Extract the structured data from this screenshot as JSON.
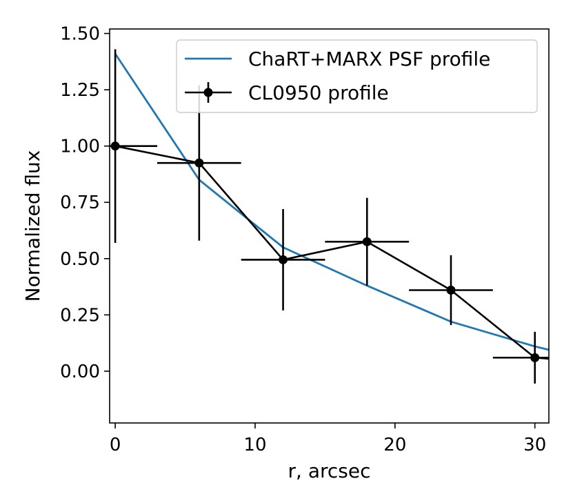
{
  "chart_data": {
    "type": "line",
    "title": "",
    "xlabel": "r, arcsec",
    "ylabel": "Normalized flux",
    "xlim": [
      -0.4,
      31
    ],
    "ylim": [
      -0.23,
      1.52
    ],
    "grid": false,
    "xticks": [
      0,
      10,
      20,
      30
    ],
    "xtick_labels": [
      "0",
      "10",
      "20",
      "30"
    ],
    "yticks": [
      0.0,
      0.25,
      0.5,
      0.75,
      1.0,
      1.25,
      1.5
    ],
    "ytick_labels": [
      "0.00",
      "0.25",
      "0.50",
      "0.75",
      "1.00",
      "1.25",
      "1.50"
    ],
    "legend_position": "upper-right",
    "series": [
      {
        "name": "ChaRT+MARX PSF profile",
        "kind": "line",
        "color": "#1f77b4",
        "x": [
          0,
          6,
          12,
          18,
          24,
          30,
          31
        ],
        "y": [
          1.41,
          0.85,
          0.55,
          0.38,
          0.22,
          0.11,
          0.095
        ]
      },
      {
        "name": "CL0950 profile",
        "kind": "errorbar",
        "color": "#000000",
        "x": [
          0,
          6,
          12,
          18,
          24,
          30
        ],
        "y": [
          1.0,
          0.925,
          0.495,
          0.575,
          0.36,
          0.06
        ],
        "xerr": [
          3,
          3,
          3,
          3,
          3,
          3
        ],
        "yerr": [
          0.43,
          0.345,
          0.225,
          0.195,
          0.155,
          0.115
        ],
        "tail": {
          "x": 31,
          "y": 0.055
        }
      }
    ]
  }
}
